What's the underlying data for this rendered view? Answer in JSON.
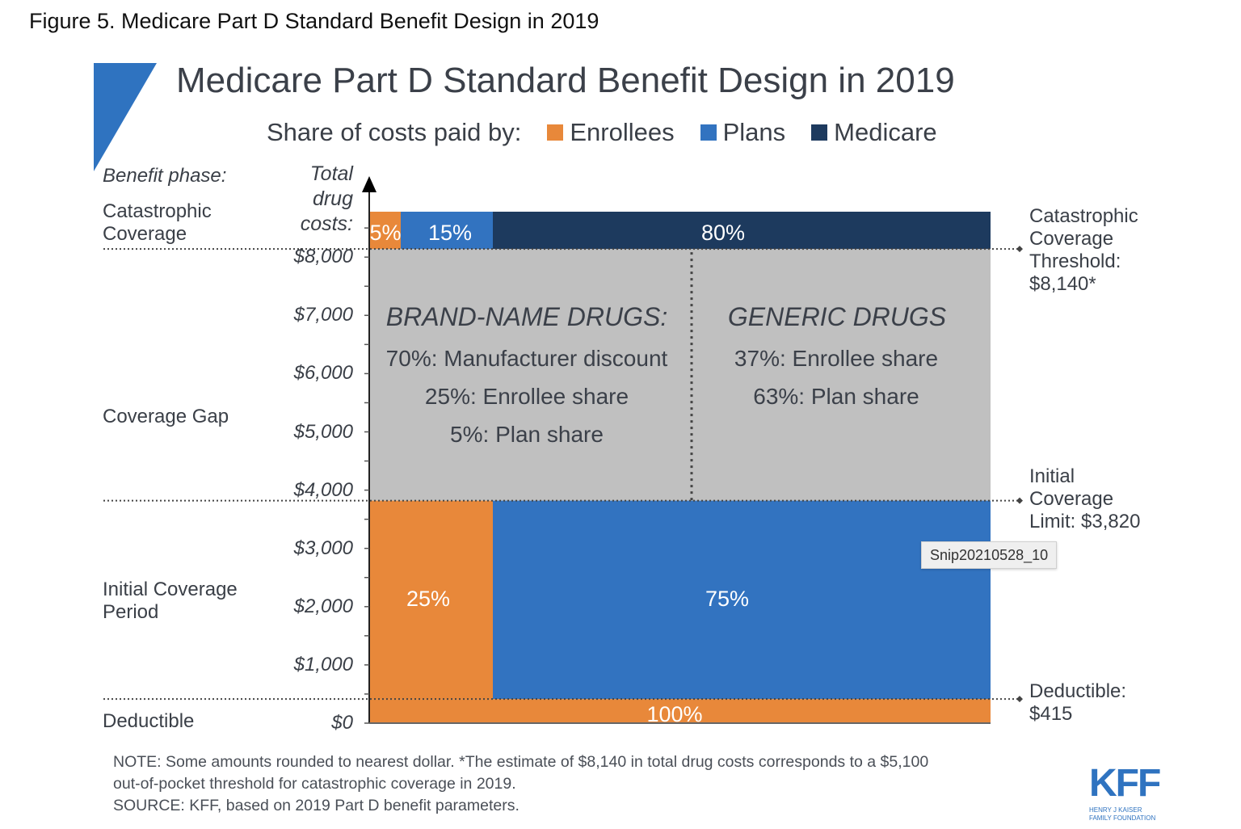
{
  "figure_title": "Figure 5. Medicare Part D Standard Benefit Design in 2019",
  "colors": {
    "enrollees": "#e8883a",
    "plans": "#3273c0",
    "medicare": "#1d3a5e",
    "gap": "#c0c0c0",
    "triangle": "#2f73c0"
  },
  "chart_data": {
    "type": "bar",
    "title": "Medicare Part D Standard Benefit Design in 2019",
    "legend_title": "Share of costs paid by:",
    "legend": [
      "Enrollees",
      "Plans",
      "Medicare"
    ],
    "legend_placement": "top",
    "ylabel": "Total drug costs:",
    "phase_header": "Benefit phase:",
    "yticks": [
      "$0",
      "$1,000",
      "$2,000",
      "$3,000",
      "$4,000",
      "$5,000",
      "$6,000",
      "$7,000",
      "$8,000"
    ],
    "ytick_values": [
      0,
      1000,
      2000,
      3000,
      4000,
      5000,
      6000,
      7000,
      8000
    ],
    "ylim": [
      0,
      8140
    ],
    "phases": [
      {
        "name": "Deductible",
        "from": 0,
        "to": 415,
        "shares": [
          {
            "payer": "Enrollees",
            "label": "100%"
          }
        ]
      },
      {
        "name": "Initial Coverage Period",
        "from": 415,
        "to": 3820,
        "shares": [
          {
            "payer": "Enrollees",
            "label": "25%"
          },
          {
            "payer": "Plans",
            "label": "75%"
          }
        ]
      },
      {
        "name": "Coverage Gap",
        "from": 3820,
        "to": 8140,
        "brand": {
          "header": "BRAND-NAME DRUGS:",
          "lines": [
            "70%: Manufacturer discount",
            "25%: Enrollee share",
            "5%: Plan share"
          ]
        },
        "generic": {
          "header": "GENERIC DRUGS",
          "lines": [
            "37%: Enrollee share",
            "63%: Plan share"
          ]
        }
      },
      {
        "name": "Catastrophic Coverage",
        "from": 8140,
        "shares": [
          {
            "payer": "Enrollees",
            "label": "5%"
          },
          {
            "payer": "Plans",
            "label": "15%"
          },
          {
            "payer": "Medicare",
            "label": "80%"
          }
        ]
      }
    ],
    "thresholds": [
      {
        "value": 8140,
        "label": [
          "Catastrophic",
          "Coverage",
          "Threshold:",
          "$8,140*"
        ]
      },
      {
        "value": 3820,
        "label": [
          "Initial",
          "Coverage",
          "Limit: $3,820"
        ]
      },
      {
        "value": 415,
        "label": [
          "Deductible:",
          "$415"
        ]
      }
    ]
  },
  "phase_labels": {
    "catastrophic": [
      "Catastrophic",
      "Coverage"
    ],
    "gap": "Coverage Gap",
    "icp": [
      "Initial Coverage",
      "Period"
    ],
    "deductible": "Deductible"
  },
  "notes": [
    "NOTE: Some amounts rounded to nearest dollar. *The estimate of $8,140 in total drug costs corresponds to a $5,100",
    "out-of-pocket threshold for catastrophic coverage in 2019.",
    "SOURCE: KFF, based on 2019 Part D benefit parameters."
  ],
  "tooltip": "Snip20210528_10",
  "logo": {
    "text": "KFF",
    "sub1": "HENRY J KAISER",
    "sub2": "FAMILY FOUNDATION"
  }
}
